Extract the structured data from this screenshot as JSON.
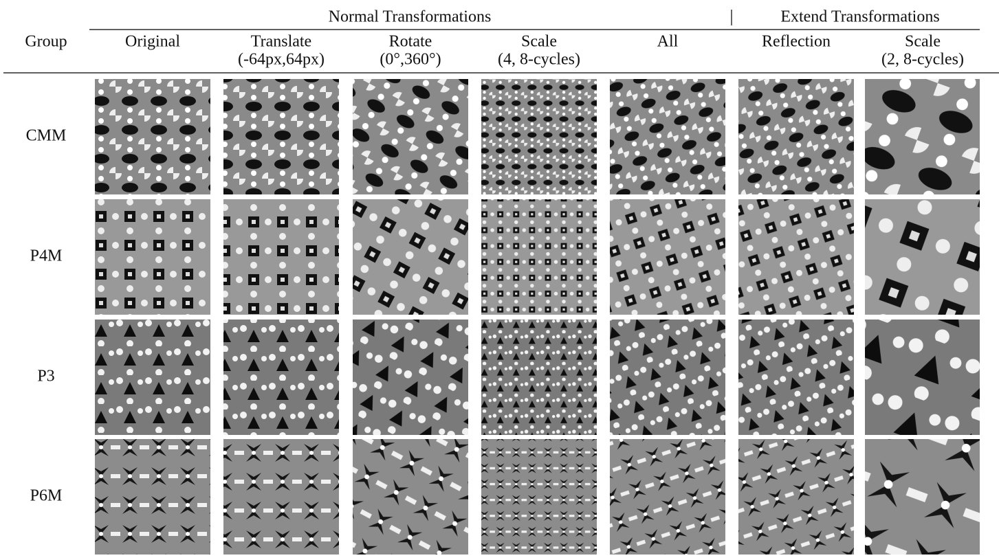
{
  "header": {
    "group": "Group",
    "normal": "Normal Transformations",
    "extend": "Extend Transformations"
  },
  "columns": [
    {
      "name": "Original"
    },
    {
      "name": "Translate",
      "range": "(-64px,64px)"
    },
    {
      "name": "Rotate",
      "range": "(0°,360°)"
    },
    {
      "name": "Scale",
      "range": "(4, 8-cycles)"
    },
    {
      "name": "All"
    },
    {
      "name": "Reflection"
    },
    {
      "name": "Scale",
      "range": "(2, 8-cycles)"
    }
  ],
  "rows": [
    "CMM",
    "P4M",
    "P3",
    "P6M"
  ]
}
